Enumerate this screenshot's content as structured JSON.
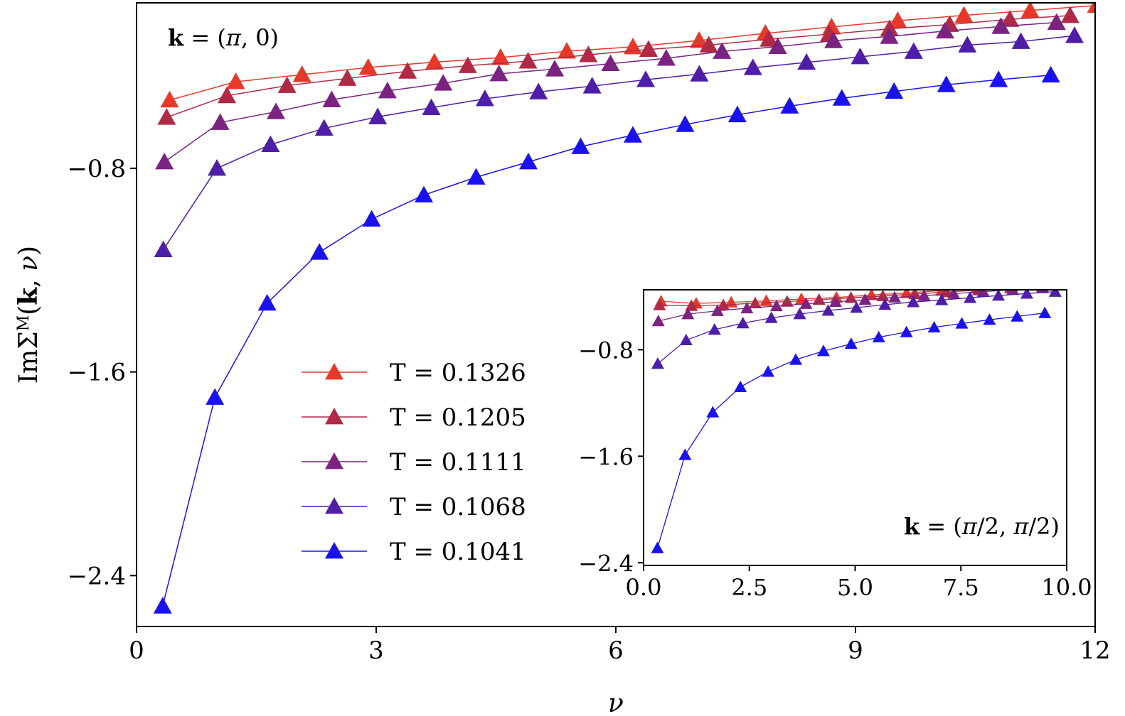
{
  "chart_data": [
    {
      "name": "main",
      "type": "line",
      "xlabel": "ν",
      "ylabel": "ImΣ^M(k, ν)",
      "xlim": [
        0,
        12
      ],
      "ylim": [
        -2.6,
        -0.15
      ],
      "xticks": [
        0,
        3,
        6,
        9,
        12
      ],
      "xtick_labels": [
        "0",
        "3",
        "6",
        "9",
        "12"
      ],
      "yticks": [
        -0.8,
        -1.6,
        -2.4
      ],
      "ytick_labels": [
        "−0.8",
        "−1.6",
        "−2.4"
      ],
      "annotation": "k = (π, 0)",
      "legend_position": "center",
      "series": [
        {
          "name": "T = 0.1326",
          "color": "#e8382a",
          "x": [
            0.414,
            1.243,
            2.071,
            2.9,
            3.729,
            4.557,
            5.386,
            6.214,
            7.043,
            7.872,
            8.7,
            9.529,
            10.357,
            11.186,
            12.014
          ],
          "y": [
            -0.532,
            -0.46,
            -0.432,
            -0.404,
            -0.383,
            -0.365,
            -0.34,
            -0.323,
            -0.298,
            -0.27,
            -0.245,
            -0.22,
            -0.199,
            -0.18,
            -0.16
          ]
        },
        {
          "name": "T = 0.1205",
          "color": "#b02a45",
          "x": [
            0.377,
            1.131,
            1.885,
            2.639,
            3.393,
            4.147,
            4.901,
            5.655,
            6.409,
            7.163,
            7.917,
            8.671,
            9.425,
            10.179,
            10.933,
            11.687
          ],
          "y": [
            -0.6,
            -0.515,
            -0.475,
            -0.447,
            -0.419,
            -0.397,
            -0.379,
            -0.354,
            -0.333,
            -0.316,
            -0.293,
            -0.273,
            -0.252,
            -0.235,
            -0.215,
            -0.2
          ]
        },
        {
          "name": "T = 0.1111",
          "color": "#7a2380",
          "x": [
            0.349,
            1.047,
            1.745,
            2.443,
            3.141,
            3.839,
            4.537,
            5.235,
            5.933,
            6.631,
            7.329,
            8.027,
            8.725,
            9.423,
            10.121,
            10.819,
            11.517
          ],
          "y": [
            -0.775,
            -0.62,
            -0.578,
            -0.531,
            -0.496,
            -0.466,
            -0.429,
            -0.41,
            -0.389,
            -0.368,
            -0.341,
            -0.322,
            -0.299,
            -0.282,
            -0.261,
            -0.243,
            -0.227
          ]
        },
        {
          "name": "T = 0.1068",
          "color": "#4f1ea8",
          "x": [
            0.335,
            1.006,
            1.677,
            2.348,
            3.019,
            3.69,
            4.361,
            5.032,
            5.703,
            6.374,
            7.045,
            7.716,
            8.387,
            9.058,
            9.729,
            10.4,
            11.071,
            11.742
          ],
          "y": [
            -1.12,
            -0.8,
            -0.707,
            -0.643,
            -0.598,
            -0.562,
            -0.527,
            -0.5,
            -0.477,
            -0.452,
            -0.43,
            -0.405,
            -0.384,
            -0.362,
            -0.341,
            -0.316,
            -0.302,
            -0.279
          ]
        },
        {
          "name": "T = 0.1041",
          "color": "#1a12ee",
          "x": [
            0.327,
            0.981,
            1.635,
            2.289,
            2.943,
            3.597,
            4.251,
            4.905,
            5.559,
            6.213,
            6.867,
            7.521,
            8.175,
            8.829,
            9.483,
            10.137,
            10.791,
            11.445
          ],
          "y": [
            -2.52,
            -1.7,
            -1.33,
            -1.13,
            -1.0,
            -0.905,
            -0.835,
            -0.775,
            -0.715,
            -0.67,
            -0.628,
            -0.59,
            -0.556,
            -0.525,
            -0.498,
            -0.472,
            -0.452,
            -0.434
          ]
        }
      ]
    },
    {
      "name": "inset",
      "type": "line",
      "xlim": [
        0,
        10
      ],
      "ylim": [
        -2.42,
        -0.35
      ],
      "xticks": [
        0,
        2.5,
        5,
        7.5,
        10
      ],
      "xtick_labels": [
        "0.0",
        "2.5",
        "5.0",
        "7.5",
        "10.0"
      ],
      "yticks": [
        -0.8,
        -1.6,
        -2.4
      ],
      "ytick_labels": [
        "−0.8",
        "−1.6",
        "−2.4"
      ],
      "annotation": "k = (π/2, π/2)",
      "series": [
        {
          "name": "T = 0.1326",
          "color": "#e8382a",
          "x": [
            0.414,
            1.243,
            2.071,
            2.9,
            3.729,
            4.557,
            5.386,
            6.214,
            7.043,
            7.872,
            8.7,
            9.529
          ],
          "y": [
            -0.436,
            -0.452,
            -0.444,
            -0.433,
            -0.419,
            -0.408,
            -0.389,
            -0.374,
            -0.356,
            -0.339,
            -0.323,
            -0.305
          ]
        },
        {
          "name": "T = 0.1205",
          "color": "#b02a45",
          "x": [
            0.377,
            1.131,
            1.885,
            2.639,
            3.393,
            4.147,
            4.901,
            5.655,
            6.409,
            7.163,
            7.917,
            8.671,
            9.425
          ],
          "y": [
            -0.465,
            -0.47,
            -0.464,
            -0.45,
            -0.438,
            -0.424,
            -0.41,
            -0.397,
            -0.381,
            -0.367,
            -0.352,
            -0.337,
            -0.323
          ]
        },
        {
          "name": "T = 0.1111",
          "color": "#7a2380",
          "x": [
            0.349,
            1.047,
            1.745,
            2.443,
            3.141,
            3.839,
            4.537,
            5.235,
            5.933,
            6.631,
            7.329,
            8.027,
            8.725,
            9.423
          ],
          "y": [
            -0.585,
            -0.532,
            -0.508,
            -0.488,
            -0.472,
            -0.455,
            -0.44,
            -0.424,
            -0.407,
            -0.394,
            -0.379,
            -0.364,
            -0.35,
            -0.337
          ]
        },
        {
          "name": "T = 0.1068",
          "color": "#4f1ea8",
          "x": [
            0.335,
            1.006,
            1.677,
            2.348,
            3.019,
            3.69,
            4.361,
            5.032,
            5.703,
            6.374,
            7.045,
            7.716,
            8.387,
            9.058,
            9.729
          ],
          "y": [
            -0.905,
            -0.728,
            -0.649,
            -0.601,
            -0.561,
            -0.532,
            -0.506,
            -0.484,
            -0.462,
            -0.442,
            -0.427,
            -0.41,
            -0.393,
            -0.378,
            -0.364
          ]
        },
        {
          "name": "T = 0.1041",
          "color": "#1a12ee",
          "x": [
            0.327,
            0.981,
            1.635,
            2.289,
            2.943,
            3.597,
            4.251,
            4.905,
            5.559,
            6.213,
            6.867,
            7.521,
            8.175,
            8.829,
            9.483
          ],
          "y": [
            -2.29,
            -1.59,
            -1.27,
            -1.08,
            -0.965,
            -0.875,
            -0.81,
            -0.756,
            -0.706,
            -0.668,
            -0.632,
            -0.603,
            -0.575,
            -0.55,
            -0.524
          ]
        }
      ]
    }
  ]
}
